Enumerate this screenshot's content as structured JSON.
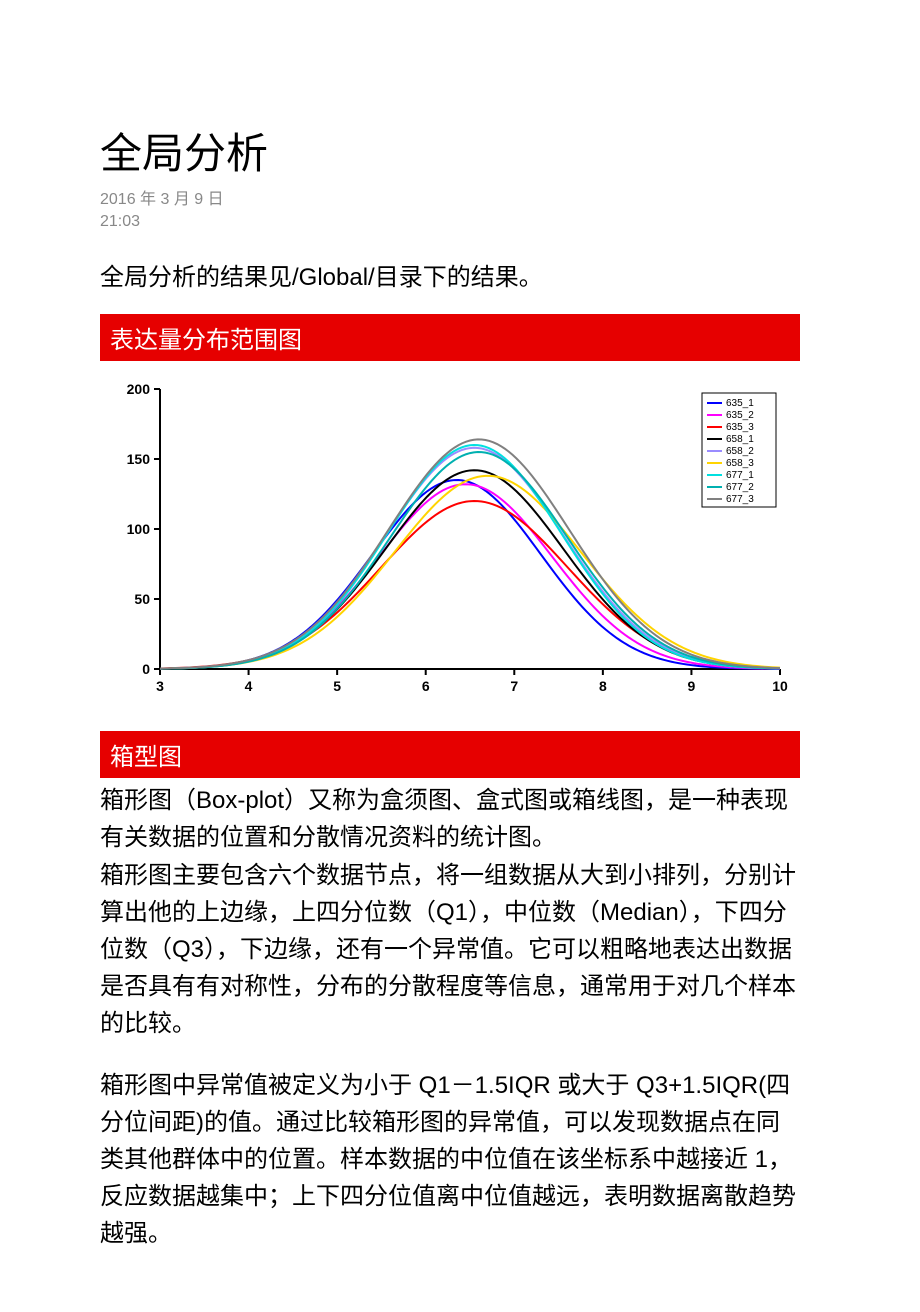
{
  "page": {
    "title": "全局分析",
    "date": "2016 年 3 月 9 日",
    "time": "21:03",
    "intro": "全局分析的结果见/Global/目录下的结果。"
  },
  "section1": {
    "header": "表达量分布范围图"
  },
  "chart": {
    "type": "line",
    "background_color": "#ffffff",
    "axis_color": "#000000",
    "tick_font_size": 14,
    "tick_font_weight": "bold",
    "xlim": [
      3,
      10
    ],
    "ylim": [
      0,
      200
    ],
    "xtick_step": 1,
    "ytick_step": 50,
    "line_width": 2,
    "legend": {
      "position": "top-right",
      "border_color": "#000000",
      "font_size": 10,
      "bg": "#ffffff"
    },
    "series": [
      {
        "label": "635_1",
        "color": "#0000ff",
        "mean": 6.35,
        "sigma": 0.95,
        "peak": 135
      },
      {
        "label": "635_2",
        "color": "#ff00ff",
        "mean": 6.45,
        "sigma": 0.98,
        "peak": 132
      },
      {
        "label": "635_3",
        "color": "#ff0000",
        "mean": 6.55,
        "sigma": 1.05,
        "peak": 120
      },
      {
        "label": "658_1",
        "color": "#000000",
        "mean": 6.55,
        "sigma": 1.0,
        "peak": 142
      },
      {
        "label": "658_2",
        "color": "#9a8cff",
        "mean": 6.55,
        "sigma": 1.0,
        "peak": 158
      },
      {
        "label": "658_3",
        "color": "#ffd400",
        "mean": 6.7,
        "sigma": 1.05,
        "peak": 138
      },
      {
        "label": "677_1",
        "color": "#00e0e0",
        "mean": 6.55,
        "sigma": 0.98,
        "peak": 160
      },
      {
        "label": "677_2",
        "color": "#00b0b0",
        "mean": 6.6,
        "sigma": 1.0,
        "peak": 155
      },
      {
        "label": "677_3",
        "color": "#808080",
        "mean": 6.6,
        "sigma": 1.02,
        "peak": 164
      }
    ]
  },
  "section2": {
    "header": "箱型图",
    "para1": "箱形图（Box-plot）又称为盒须图、盒式图或箱线图，是一种表现有关数据的位置和分散情况资料的统计图。",
    "para2": "箱形图主要包含六个数据节点，将一组数据从大到小排列，分别计算出他的上边缘，上四分位数（Q1），中位数（Median），下四分位数（Q3），下边缘，还有一个异常值。它可以粗略地表达出数据是否具有有对称性，分布的分散程度等信息，通常用于对几个样本的比较。",
    "para3": "箱形图中异常值被定义为小于 Q1－1.5IQR 或大于 Q3+1.5IQR(四分位间距)的值。通过比较箱形图的异常值，可以发现数据点在同类其他群体中的位置。样本数据的中位值在该坐标系中越接近 1，反应数据越集中；上下四分位值离中位值越远，表明数据离散趋势越强。"
  }
}
